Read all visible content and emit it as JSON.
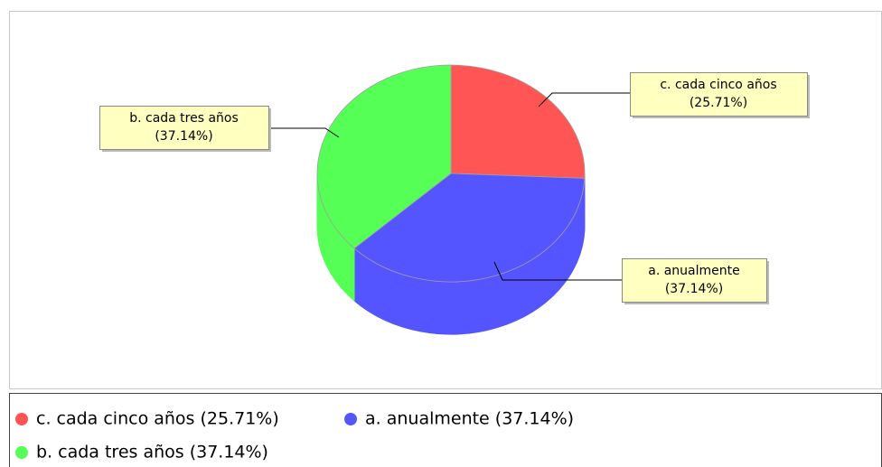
{
  "chart_data": {
    "type": "pie3d",
    "categories": [
      "c. cada cinco años",
      "a. anualmente",
      "b. cada tres años"
    ],
    "values": [
      25.71,
      37.14,
      37.14
    ],
    "value_labels": [
      "(25.71%)",
      "(37.14%)",
      "(37.14%)"
    ],
    "colors": [
      "#ff5555",
      "#5555ff",
      "#55ff55"
    ],
    "legend": [
      "c. cada cinco años (25.71%)",
      "a. anualmente (37.14%)",
      "b. cada tres años (37.14%)"
    ]
  }
}
